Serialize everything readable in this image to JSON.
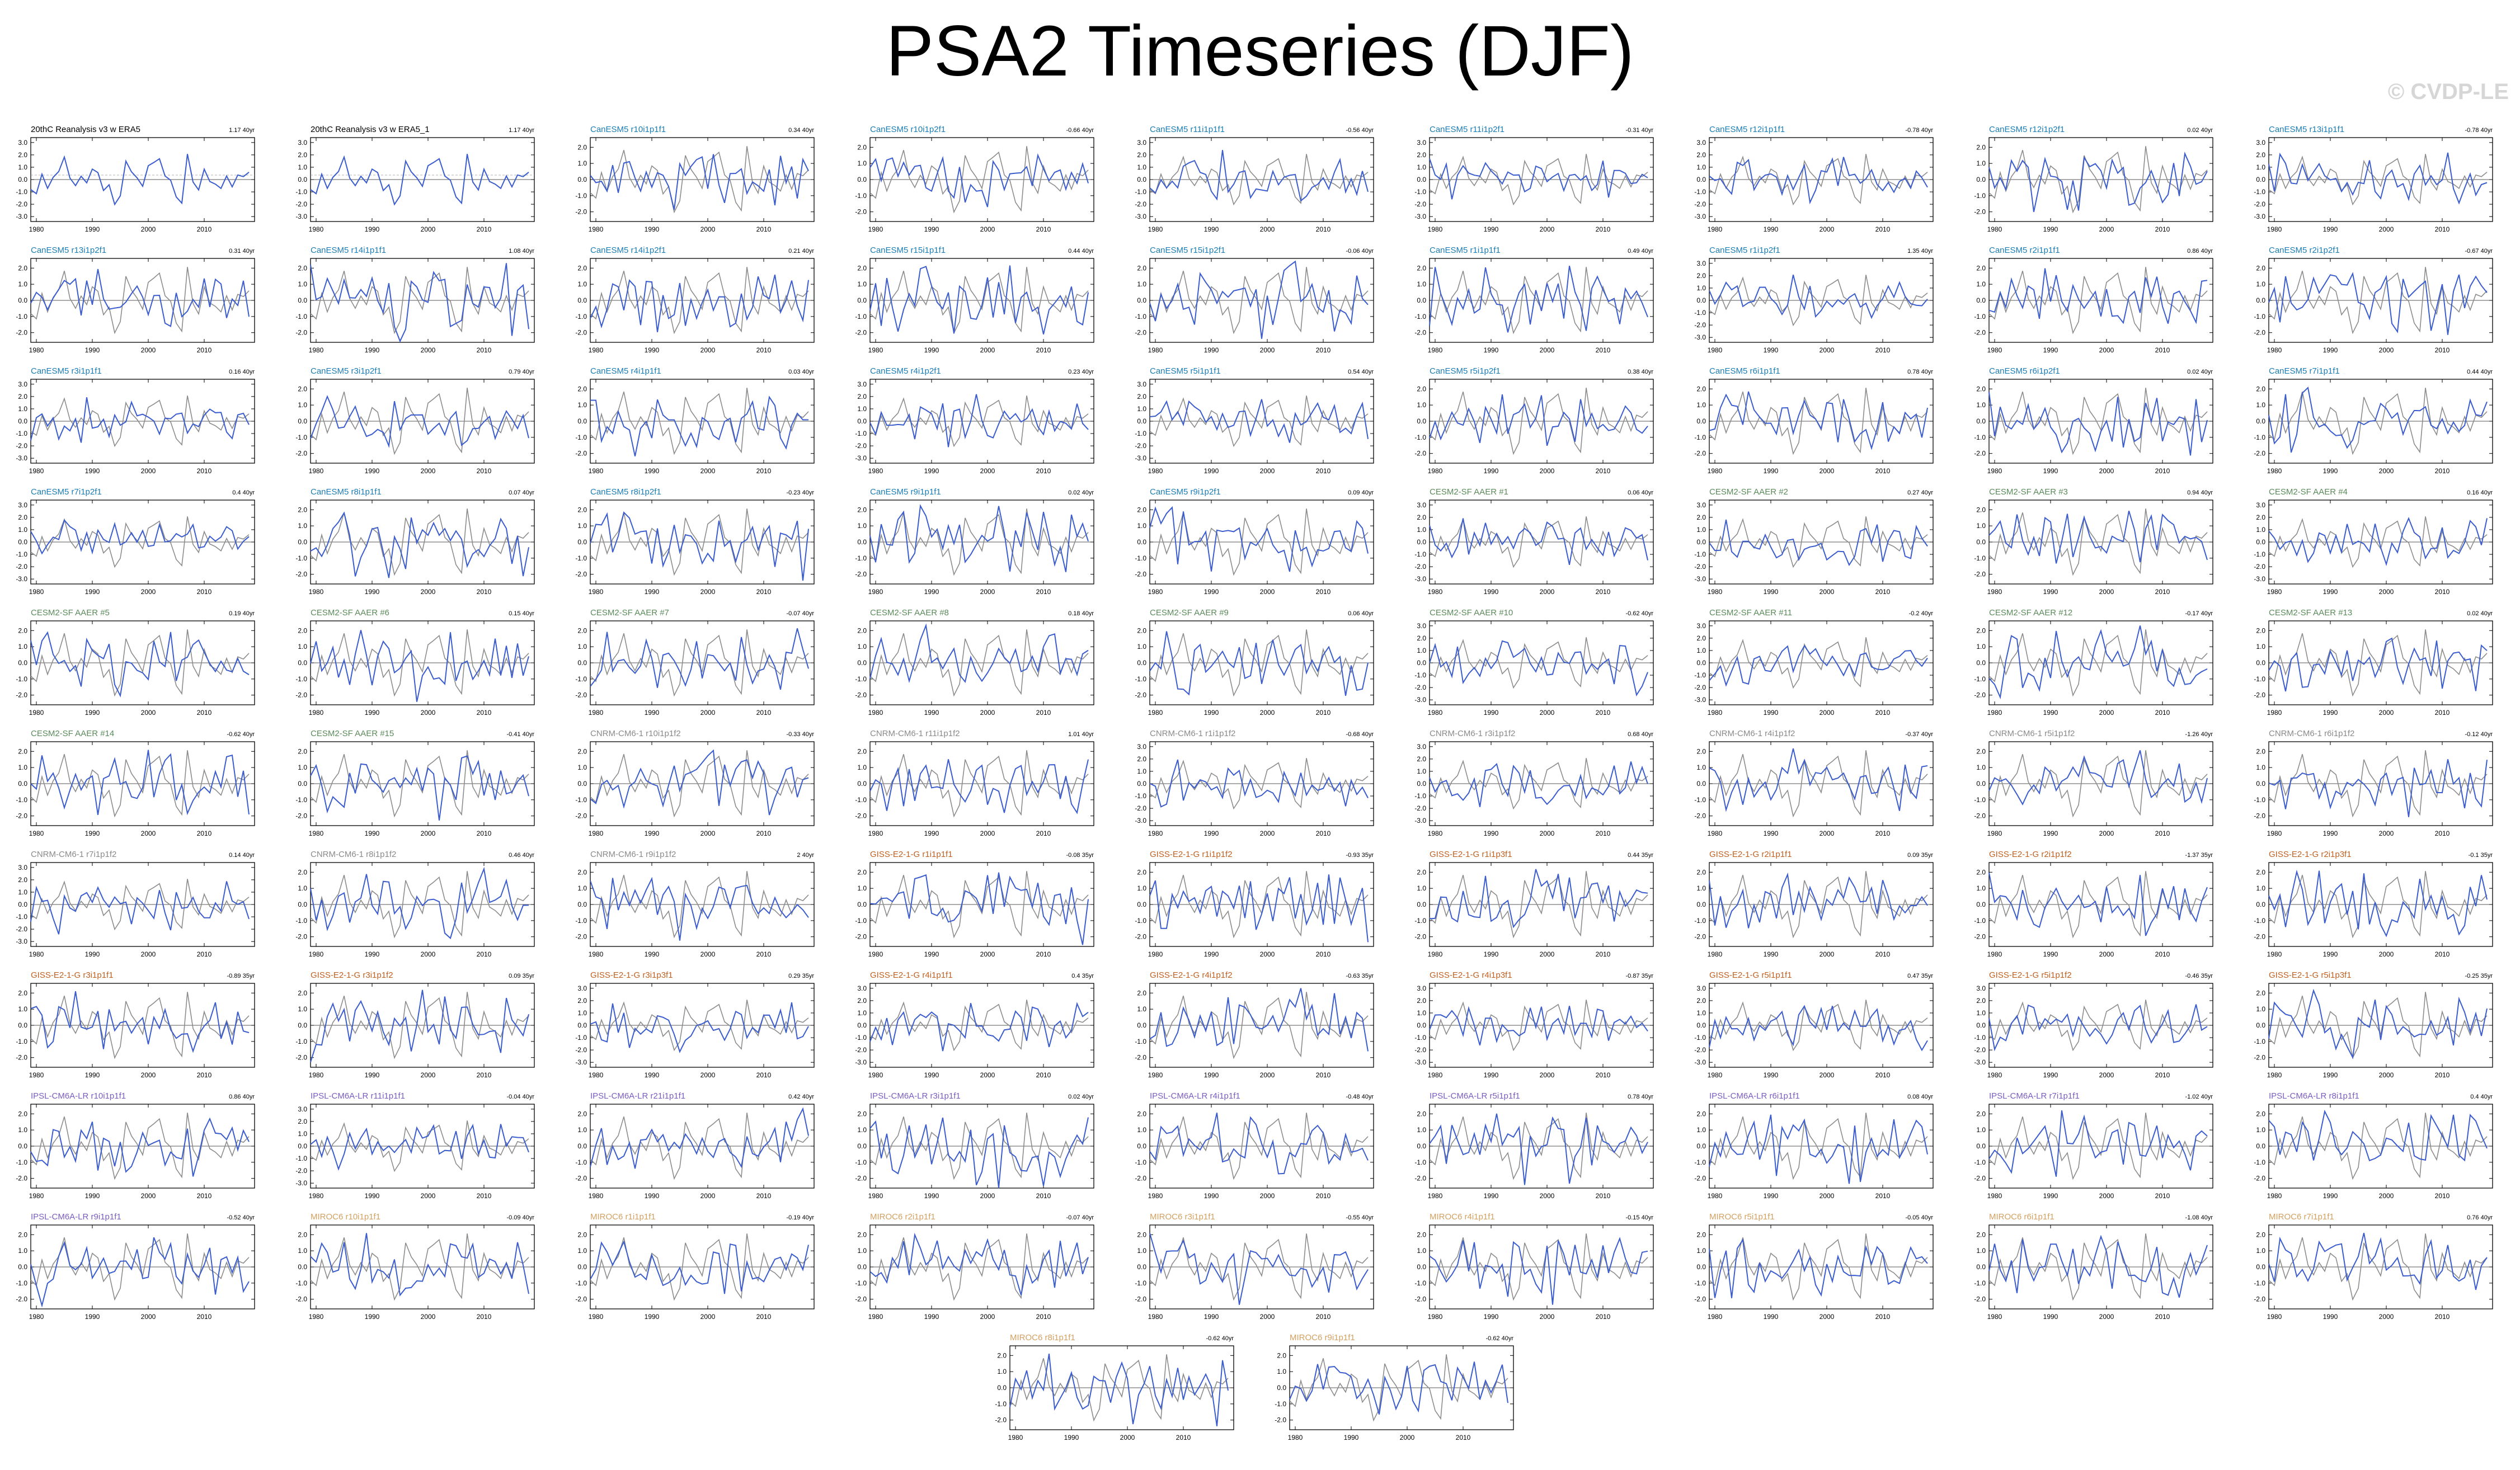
{
  "title": "PSA2 Timeseries (DJF)",
  "watermark": "© CVDP-LE",
  "colors": {
    "sim_line": "#3a5ccc",
    "obs_line": "#8c8c8c",
    "axis": "#000000",
    "zero_line": "#555555",
    "groups": {
      "obs": "#000000",
      "CanESM5": "#1a7db5",
      "CESM2-SF": "#5a8a5a",
      "CNRM-CM6-1": "#8a8a8a",
      "GISS-E2-1-G": "#c06020",
      "IPSL-CM6A-LR": "#7a5cc0",
      "MIROC6": "#d4a060"
    }
  },
  "chart_data": {
    "type": "line",
    "x_range": [
      1979,
      2019
    ],
    "x_ticks": [
      1980,
      1990,
      2000,
      2010
    ],
    "y_ticks_default": [
      "2.0",
      "1.0",
      "0.0",
      "-1.0",
      "-2.0"
    ],
    "y_ticks_tall": [
      "3.0",
      "2.0",
      "1.0",
      "0.0",
      "-1.0",
      "-2.0",
      "-3.0"
    ],
    "panels": [
      {
        "label": "20thC Reanalysis v3 w ERA5",
        "trend": "1.17 40yr",
        "group": "obs",
        "tall": true
      },
      {
        "label": "20thC Reanalysis v3 w ERA5_1",
        "trend": "1.17 40yr",
        "group": "obs",
        "tall": true
      },
      {
        "label": "CanESM5 r10i1p1f1",
        "trend": "0.34 40yr",
        "group": "CanESM5",
        "tall": false
      },
      {
        "label": "CanESM5 r10i1p2f1",
        "trend": "-0.66 40yr",
        "group": "CanESM5",
        "tall": false
      },
      {
        "label": "CanESM5 r11i1p1f1",
        "trend": "-0.56 40yr",
        "group": "CanESM5",
        "tall": true
      },
      {
        "label": "CanESM5 r11i1p2f1",
        "trend": "-0.31 40yr",
        "group": "CanESM5",
        "tall": true
      },
      {
        "label": "CanESM5 r12i1p1f1",
        "trend": "-0.78 40yr",
        "group": "CanESM5",
        "tall": true
      },
      {
        "label": "CanESM5 r12i1p2f1",
        "trend": "0.02 40yr",
        "group": "CanESM5",
        "tall": false
      },
      {
        "label": "CanESM5 r13i1p1f1",
        "trend": "-0.78 40yr",
        "group": "CanESM5",
        "tall": true
      },
      {
        "label": "CanESM5 r13i1p2f1",
        "trend": "0.31 40yr",
        "group": "CanESM5",
        "tall": false
      },
      {
        "label": "CanESM5 r14i1p1f1",
        "trend": "1.08 40yr",
        "group": "CanESM5",
        "tall": false
      },
      {
        "label": "CanESM5 r14i1p2f1",
        "trend": "0.21 40yr",
        "group": "CanESM5",
        "tall": false
      },
      {
        "label": "CanESM5 r15i1p1f1",
        "trend": "0.44 40yr",
        "group": "CanESM5",
        "tall": false
      },
      {
        "label": "CanESM5 r15i1p2f1",
        "trend": "-0.06 40yr",
        "group": "CanESM5",
        "tall": false
      },
      {
        "label": "CanESM5 r1i1p1f1",
        "trend": "0.49 40yr",
        "group": "CanESM5",
        "tall": false
      },
      {
        "label": "CanESM5 r1i1p2f1",
        "trend": "1.35 40yr",
        "group": "CanESM5",
        "tall": true
      },
      {
        "label": "CanESM5 r2i1p1f1",
        "trend": "0.86 40yr",
        "group": "CanESM5",
        "tall": false
      },
      {
        "label": "CanESM5 r2i1p2f1",
        "trend": "-0.67 40yr",
        "group": "CanESM5",
        "tall": false
      },
      {
        "label": "CanESM5 r3i1p1f1",
        "trend": "0.16 40yr",
        "group": "CanESM5",
        "tall": true
      },
      {
        "label": "CanESM5 r3i1p2f1",
        "trend": "0.79 40yr",
        "group": "CanESM5",
        "tall": false
      },
      {
        "label": "CanESM5 r4i1p1f1",
        "trend": "0.03 40yr",
        "group": "CanESM5",
        "tall": false
      },
      {
        "label": "CanESM5 r4i1p2f1",
        "trend": "0.23 40yr",
        "group": "CanESM5",
        "tall": true
      },
      {
        "label": "CanESM5 r5i1p1f1",
        "trend": "0.54 40yr",
        "group": "CanESM5",
        "tall": true
      },
      {
        "label": "CanESM5 r5i1p2f1",
        "trend": "0.38 40yr",
        "group": "CanESM5",
        "tall": false
      },
      {
        "label": "CanESM5 r6i1p1f1",
        "trend": "0.78 40yr",
        "group": "CanESM5",
        "tall": false
      },
      {
        "label": "CanESM5 r6i1p2f1",
        "trend": "0.02 40yr",
        "group": "CanESM5",
        "tall": false
      },
      {
        "label": "CanESM5 r7i1p1f1",
        "trend": "0.44 40yr",
        "group": "CanESM5",
        "tall": false
      },
      {
        "label": "CanESM5 r7i1p2f1",
        "trend": "0.4 40yr",
        "group": "CanESM5",
        "tall": true
      },
      {
        "label": "CanESM5 r8i1p1f1",
        "trend": "0.07 40yr",
        "group": "CanESM5",
        "tall": false
      },
      {
        "label": "CanESM5 r8i1p2f1",
        "trend": "-0.23 40yr",
        "group": "CanESM5",
        "tall": false
      },
      {
        "label": "CanESM5 r9i1p1f1",
        "trend": "0.02 40yr",
        "group": "CanESM5",
        "tall": false
      },
      {
        "label": "CanESM5 r9i1p2f1",
        "trend": "0.09 40yr",
        "group": "CanESM5",
        "tall": false
      },
      {
        "label": "CESM2-SF AAER #1",
        "trend": "0.06 40yr",
        "group": "CESM2-SF",
        "tall": true
      },
      {
        "label": "CESM2-SF AAER #2",
        "trend": "0.27 40yr",
        "group": "CESM2-SF",
        "tall": true
      },
      {
        "label": "CESM2-SF AAER #3",
        "trend": "0.94 40yr",
        "group": "CESM2-SF",
        "tall": false
      },
      {
        "label": "CESM2-SF AAER #4",
        "trend": "0.16 40yr",
        "group": "CESM2-SF",
        "tall": true
      },
      {
        "label": "CESM2-SF AAER #5",
        "trend": "0.19 40yr",
        "group": "CESM2-SF",
        "tall": false
      },
      {
        "label": "CESM2-SF AAER #6",
        "trend": "0.15 40yr",
        "group": "CESM2-SF",
        "tall": false
      },
      {
        "label": "CESM2-SF AAER #7",
        "trend": "-0.07 40yr",
        "group": "CESM2-SF",
        "tall": false
      },
      {
        "label": "CESM2-SF AAER #8",
        "trend": "0.18 40yr",
        "group": "CESM2-SF",
        "tall": false
      },
      {
        "label": "CESM2-SF AAER #9",
        "trend": "0.06 40yr",
        "group": "CESM2-SF",
        "tall": false
      },
      {
        "label": "CESM2-SF AAER #10",
        "trend": "-0.62 40yr",
        "group": "CESM2-SF",
        "tall": true
      },
      {
        "label": "CESM2-SF AAER #11",
        "trend": "-0.2 40yr",
        "group": "CESM2-SF",
        "tall": true
      },
      {
        "label": "CESM2-SF AAER #12",
        "trend": "-0.17 40yr",
        "group": "CESM2-SF",
        "tall": false
      },
      {
        "label": "CESM2-SF AAER #13",
        "trend": "0.02 40yr",
        "group": "CESM2-SF",
        "tall": false
      },
      {
        "label": "CESM2-SF AAER #14",
        "trend": "-0.62 40yr",
        "group": "CESM2-SF",
        "tall": false
      },
      {
        "label": "CESM2-SF AAER #15",
        "trend": "-0.41 40yr",
        "group": "CESM2-SF",
        "tall": false
      },
      {
        "label": "CNRM-CM6-1 r10i1p1f2",
        "trend": "-0.33 40yr",
        "group": "CNRM-CM6-1",
        "tall": false
      },
      {
        "label": "CNRM-CM6-1 r11i1p1f2",
        "trend": "1.01 40yr",
        "group": "CNRM-CM6-1",
        "tall": false
      },
      {
        "label": "CNRM-CM6-1 r1i1p1f2",
        "trend": "-0.68 40yr",
        "group": "CNRM-CM6-1",
        "tall": true
      },
      {
        "label": "CNRM-CM6-1 r3i1p1f2",
        "trend": "0.68 40yr",
        "group": "CNRM-CM6-1",
        "tall": true
      },
      {
        "label": "CNRM-CM6-1 r4i1p1f2",
        "trend": "-0.37 40yr",
        "group": "CNRM-CM6-1",
        "tall": false
      },
      {
        "label": "CNRM-CM6-1 r5i1p1f2",
        "trend": "-1.26 40yr",
        "group": "CNRM-CM6-1",
        "tall": false
      },
      {
        "label": "CNRM-CM6-1 r6i1p1f2",
        "trend": "-0.12 40yr",
        "group": "CNRM-CM6-1",
        "tall": false
      },
      {
        "label": "CNRM-CM6-1 r7i1p1f2",
        "trend": "0.14 40yr",
        "group": "CNRM-CM6-1",
        "tall": true
      },
      {
        "label": "CNRM-CM6-1 r8i1p1f2",
        "trend": "0.46 40yr",
        "group": "CNRM-CM6-1",
        "tall": false
      },
      {
        "label": "CNRM-CM6-1 r9i1p1f2",
        "trend": "2 40yr",
        "group": "CNRM-CM6-1",
        "tall": false
      },
      {
        "label": "GISS-E2-1-G r1i1p1f1",
        "trend": "-0.08 35yr",
        "group": "GISS-E2-1-G",
        "tall": false
      },
      {
        "label": "GISS-E2-1-G r1i1p1f2",
        "trend": "-0.93 35yr",
        "group": "GISS-E2-1-G",
        "tall": false
      },
      {
        "label": "GISS-E2-1-G r1i1p3f1",
        "trend": "0.44 35yr",
        "group": "GISS-E2-1-G",
        "tall": false
      },
      {
        "label": "GISS-E2-1-G r2i1p1f1",
        "trend": "0.09 35yr",
        "group": "GISS-E2-1-G",
        "tall": false
      },
      {
        "label": "GISS-E2-1-G r2i1p1f2",
        "trend": "-1.37 35yr",
        "group": "GISS-E2-1-G",
        "tall": false
      },
      {
        "label": "GISS-E2-1-G r2i1p3f1",
        "trend": "-0.1 35yr",
        "group": "GISS-E2-1-G",
        "tall": false
      },
      {
        "label": "GISS-E2-1-G r3i1p1f1",
        "trend": "-0.89 35yr",
        "group": "GISS-E2-1-G",
        "tall": false
      },
      {
        "label": "GISS-E2-1-G r3i1p1f2",
        "trend": "0.09 35yr",
        "group": "GISS-E2-1-G",
        "tall": false
      },
      {
        "label": "GISS-E2-1-G r3i1p3f1",
        "trend": "0.29 35yr",
        "group": "GISS-E2-1-G",
        "tall": true
      },
      {
        "label": "GISS-E2-1-G r4i1p1f1",
        "trend": "0.4 35yr",
        "group": "GISS-E2-1-G",
        "tall": true
      },
      {
        "label": "GISS-E2-1-G r4i1p1f2",
        "trend": "-0.63 35yr",
        "group": "GISS-E2-1-G",
        "tall": false
      },
      {
        "label": "GISS-E2-1-G r4i1p3f1",
        "trend": "-0.87 35yr",
        "group": "GISS-E2-1-G",
        "tall": true
      },
      {
        "label": "GISS-E2-1-G r5i1p1f1",
        "trend": "0.47 35yr",
        "group": "GISS-E2-1-G",
        "tall": true
      },
      {
        "label": "GISS-E2-1-G r5i1p1f2",
        "trend": "-0.46 35yr",
        "group": "GISS-E2-1-G",
        "tall": true
      },
      {
        "label": "GISS-E2-1-G r5i1p3f1",
        "trend": "-0.25 35yr",
        "group": "GISS-E2-1-G",
        "tall": false
      },
      {
        "label": "IPSL-CM6A-LR r10i1p1f1",
        "trend": "0.86 40yr",
        "group": "IPSL-CM6A-LR",
        "tall": false
      },
      {
        "label": "IPSL-CM6A-LR r11i1p1f1",
        "trend": "-0.04 40yr",
        "group": "IPSL-CM6A-LR",
        "tall": true
      },
      {
        "label": "IPSL-CM6A-LR r21i1p1f1",
        "trend": "0.42 40yr",
        "group": "IPSL-CM6A-LR",
        "tall": false
      },
      {
        "label": "IPSL-CM6A-LR r3i1p1f1",
        "trend": "0.02 40yr",
        "group": "IPSL-CM6A-LR",
        "tall": false
      },
      {
        "label": "IPSL-CM6A-LR r4i1p1f1",
        "trend": "-0.48 40yr",
        "group": "IPSL-CM6A-LR",
        "tall": false
      },
      {
        "label": "IPSL-CM6A-LR r5i1p1f1",
        "trend": "0.78 40yr",
        "group": "IPSL-CM6A-LR",
        "tall": false
      },
      {
        "label": "IPSL-CM6A-LR r6i1p1f1",
        "trend": "0.08 40yr",
        "group": "IPSL-CM6A-LR",
        "tall": false
      },
      {
        "label": "IPSL-CM6A-LR r7i1p1f1",
        "trend": "-1.02 40yr",
        "group": "IPSL-CM6A-LR",
        "tall": false
      },
      {
        "label": "IPSL-CM6A-LR r8i1p1f1",
        "trend": "0.4 40yr",
        "group": "IPSL-CM6A-LR",
        "tall": false
      },
      {
        "label": "IPSL-CM6A-LR r9i1p1f1",
        "trend": "-0.52 40yr",
        "group": "IPSL-CM6A-LR",
        "tall": false
      },
      {
        "label": "MIROC6 r10i1p1f1",
        "trend": "-0.09 40yr",
        "group": "MIROC6",
        "tall": false
      },
      {
        "label": "MIROC6 r1i1p1f1",
        "trend": "-0.19 40yr",
        "group": "MIROC6",
        "tall": false
      },
      {
        "label": "MIROC6 r2i1p1f1",
        "trend": "-0.07 40yr",
        "group": "MIROC6",
        "tall": false
      },
      {
        "label": "MIROC6 r3i1p1f1",
        "trend": "-0.55 40yr",
        "group": "MIROC6",
        "tall": false
      },
      {
        "label": "MIROC6 r4i1p1f1",
        "trend": "-0.15 40yr",
        "group": "MIROC6",
        "tall": false
      },
      {
        "label": "MIROC6 r5i1p1f1",
        "trend": "-0.05 40yr",
        "group": "MIROC6",
        "tall": false
      },
      {
        "label": "MIROC6 r6i1p1f1",
        "trend": "-1.08 40yr",
        "group": "MIROC6",
        "tall": false
      },
      {
        "label": "MIROC6 r7i1p1f1",
        "trend": "0.76 40yr",
        "group": "MIROC6",
        "tall": false
      },
      {
        "label": "MIROC6 r8i1p1f1",
        "trend": "-0.62 40yr",
        "group": "MIROC6",
        "tall": false
      },
      {
        "label": "MIROC6 r9i1p1f1",
        "trend": "-0.62 40yr",
        "group": "MIROC6",
        "tall": false
      }
    ]
  }
}
